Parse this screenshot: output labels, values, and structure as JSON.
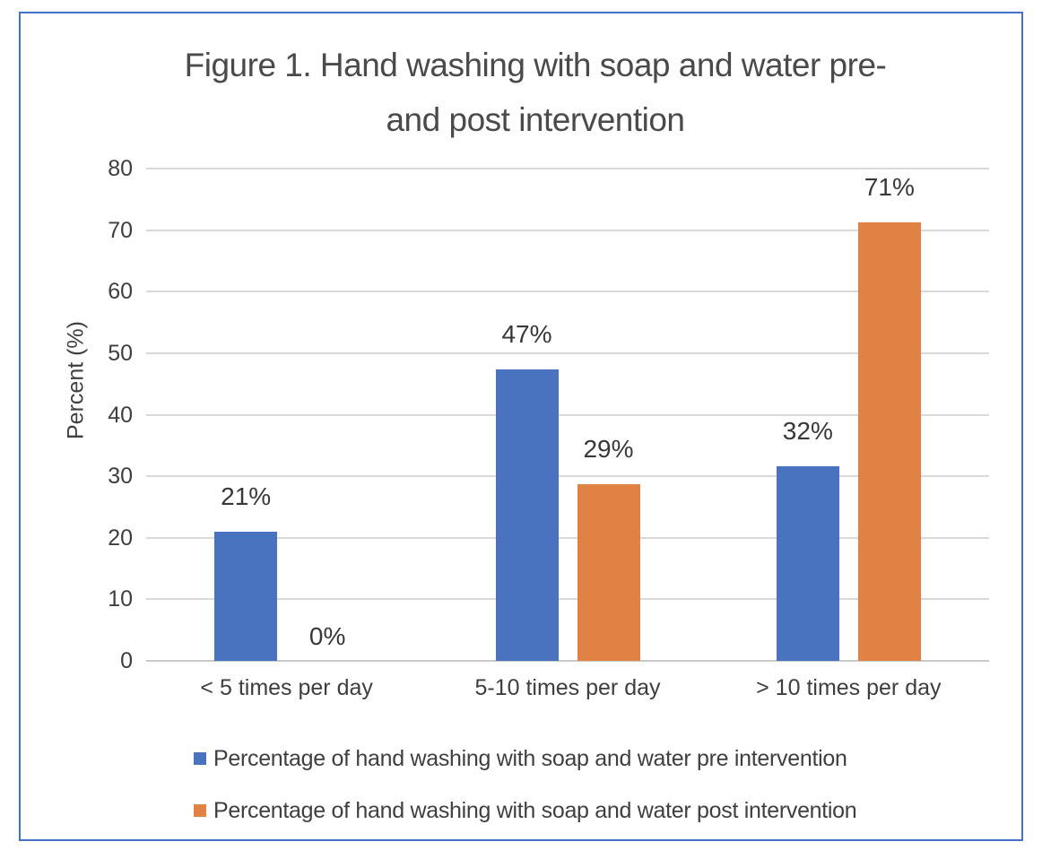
{
  "chart_data": {
    "type": "bar",
    "title": "Figure 1. Hand washing with soap and water pre- and post intervention",
    "title_lines": [
      "Figure 1. Hand washing with soap and water pre-",
      "and post intervention"
    ],
    "ylabel": "Percent (%)",
    "categories": [
      "< 5 times per day",
      "5-10 times per day",
      "> 10 times per day"
    ],
    "series": [
      {
        "name": "Percentage of hand washing with soap and water pre intervention",
        "color": "#4A73BF",
        "values": [
          21,
          47,
          32
        ],
        "bar_values": [
          21,
          47.3,
          31.6
        ],
        "labels": [
          "21%",
          "47%",
          "32%"
        ]
      },
      {
        "name": "Percentage of hand washing with soap and water post intervention",
        "color": "#E08243",
        "values": [
          0,
          29,
          71
        ],
        "bar_values": [
          0,
          28.7,
          71.3
        ],
        "labels": [
          "0%",
          "29%",
          "71%"
        ]
      }
    ],
    "ylim": [
      0,
      80
    ],
    "ytick_step": 10,
    "yticks": [
      "0",
      "10",
      "20",
      "30",
      "40",
      "50",
      "60",
      "70",
      "80"
    ],
    "grid": true,
    "legend_position": "bottom",
    "gridline_color": "#d9d9d9",
    "axis_line_color": "#c9c9c9",
    "frame_border_color": "#4472C4"
  }
}
